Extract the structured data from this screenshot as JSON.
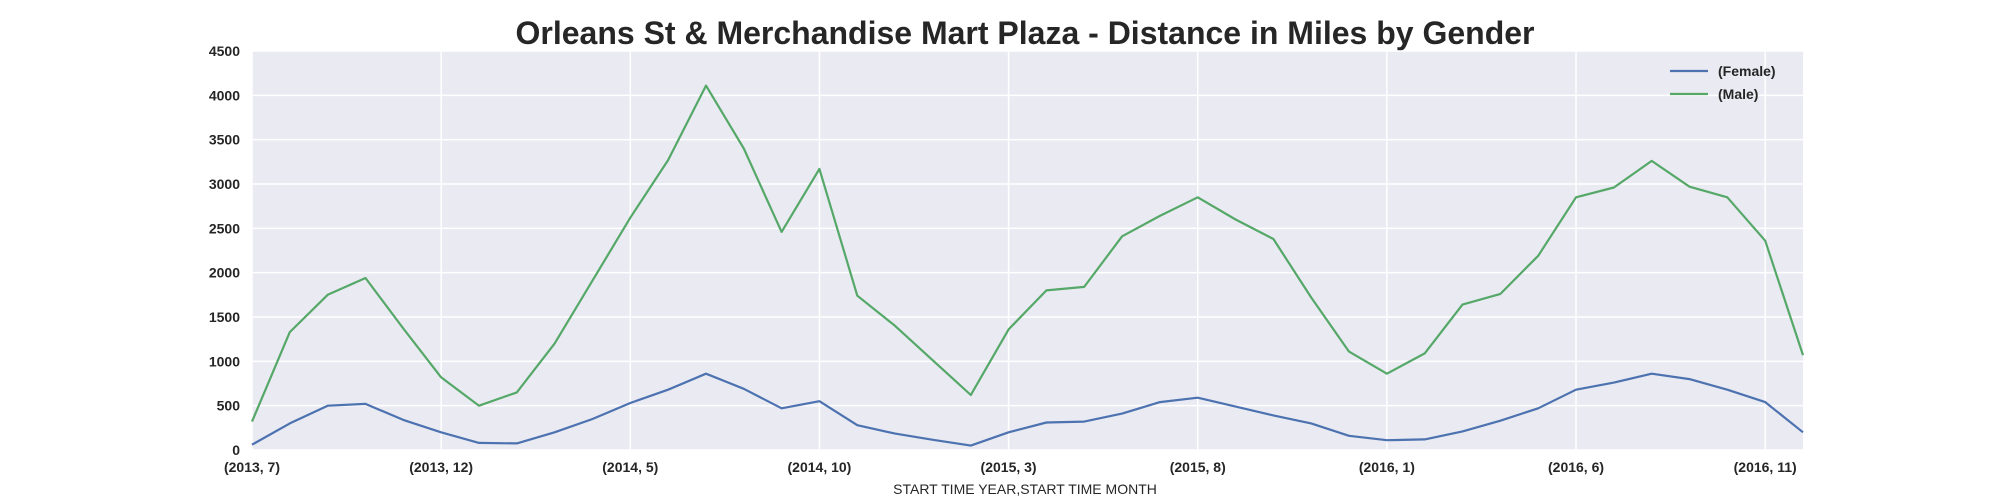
{
  "chart_data": {
    "type": "line",
    "title": "Orleans St & Merchandise Mart Plaza - Distance in Miles by Gender",
    "xlabel": "START TIME YEAR,START TIME MONTH",
    "ylabel": "",
    "ylim": [
      0,
      4500
    ],
    "yticks": [
      0,
      500,
      1000,
      1500,
      2000,
      2500,
      3000,
      3500,
      4000,
      4500
    ],
    "grid": true,
    "legend_position": "top-right",
    "x": [
      "(2013, 7)",
      "(2013, 8)",
      "(2013, 9)",
      "(2013, 10)",
      "(2013, 11)",
      "(2013, 12)",
      "(2014, 1)",
      "(2014, 2)",
      "(2014, 3)",
      "(2014, 4)",
      "(2014, 5)",
      "(2014, 6)",
      "(2014, 7)",
      "(2014, 8)",
      "(2014, 9)",
      "(2014, 10)",
      "(2014, 11)",
      "(2014, 12)",
      "(2015, 1)",
      "(2015, 2)",
      "(2015, 3)",
      "(2015, 4)",
      "(2015, 5)",
      "(2015, 6)",
      "(2015, 7)",
      "(2015, 8)",
      "(2015, 9)",
      "(2015, 10)",
      "(2015, 11)",
      "(2015, 12)",
      "(2016, 1)",
      "(2016, 2)",
      "(2016, 3)",
      "(2016, 4)",
      "(2016, 5)",
      "(2016, 6)",
      "(2016, 7)",
      "(2016, 8)",
      "(2016, 9)",
      "(2016, 10)",
      "(2016, 11)",
      "(2016, 12)"
    ],
    "xtick_labels": [
      "(2013, 7)",
      "(2013, 12)",
      "(2014, 5)",
      "(2014, 10)",
      "(2015, 3)",
      "(2015, 8)",
      "(2016, 1)",
      "(2016, 6)",
      "(2016, 11)"
    ],
    "xtick_indices": [
      0,
      5,
      10,
      15,
      20,
      25,
      30,
      35,
      40
    ],
    "series": [
      {
        "name": "(Female)",
        "color": "#4c72b0",
        "values": [
          60,
          300,
          500,
          520,
          340,
          200,
          80,
          75,
          200,
          350,
          530,
          680,
          860,
          690,
          470,
          550,
          280,
          185,
          115,
          50,
          200,
          310,
          320,
          410,
          540,
          590,
          490,
          390,
          300,
          160,
          110,
          120,
          210,
          330,
          470,
          680,
          760,
          860,
          800,
          680,
          540,
          200
        ]
      },
      {
        "name": "(Male)",
        "color": "#55a868",
        "values": [
          320,
          1330,
          1750,
          1940,
          1370,
          820,
          500,
          650,
          1200,
          1910,
          2620,
          3270,
          4110,
          3400,
          2460,
          3170,
          1740,
          1400,
          1010,
          620,
          1360,
          1800,
          1840,
          2410,
          2640,
          2850,
          2600,
          2380,
          1720,
          1110,
          860,
          1090,
          1640,
          1760,
          2190,
          2850,
          2960,
          3260,
          2970,
          2850,
          2360,
          1070
        ]
      }
    ]
  }
}
